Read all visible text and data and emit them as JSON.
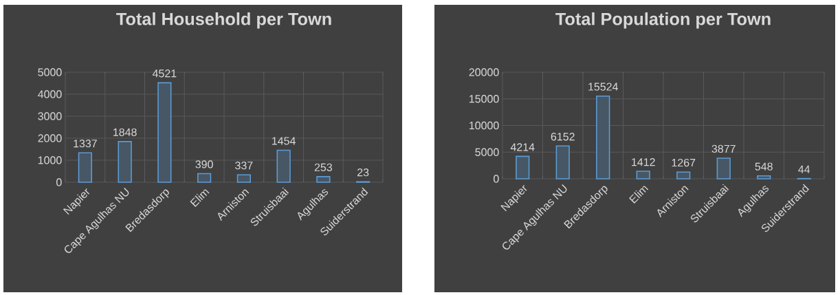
{
  "chart_data": [
    {
      "type": "bar",
      "title": "Total Household per Town",
      "categories": [
        "Napier",
        "Cape Agulhas NU",
        "Bredasdorp",
        "Elim",
        "Arniston",
        "Struisbaai",
        "Agulhas",
        "Suiderstrand"
      ],
      "values": [
        1337,
        1848,
        4521,
        390,
        337,
        1454,
        253,
        23
      ],
      "color": "#5b9bd5",
      "ylim": [
        0,
        5000
      ],
      "yticks": [
        0,
        1000,
        2000,
        3000,
        4000,
        5000
      ],
      "grid": true,
      "data_labels": true
    },
    {
      "type": "bar",
      "title": "Total Population per Town",
      "categories": [
        "Napier",
        "Cape Agulhas NU",
        "Bredasdorp",
        "Elim",
        "Arniston",
        "Struisbaai",
        "Agulhas",
        "Suiderstrand"
      ],
      "values": [
        4214,
        6152,
        15524,
        1412,
        1267,
        3877,
        548,
        44
      ],
      "color": "#5b9bd5",
      "ylim": [
        0,
        20000
      ],
      "yticks": [
        0,
        5000,
        10000,
        15000,
        20000
      ],
      "grid": true,
      "data_labels": true
    }
  ]
}
